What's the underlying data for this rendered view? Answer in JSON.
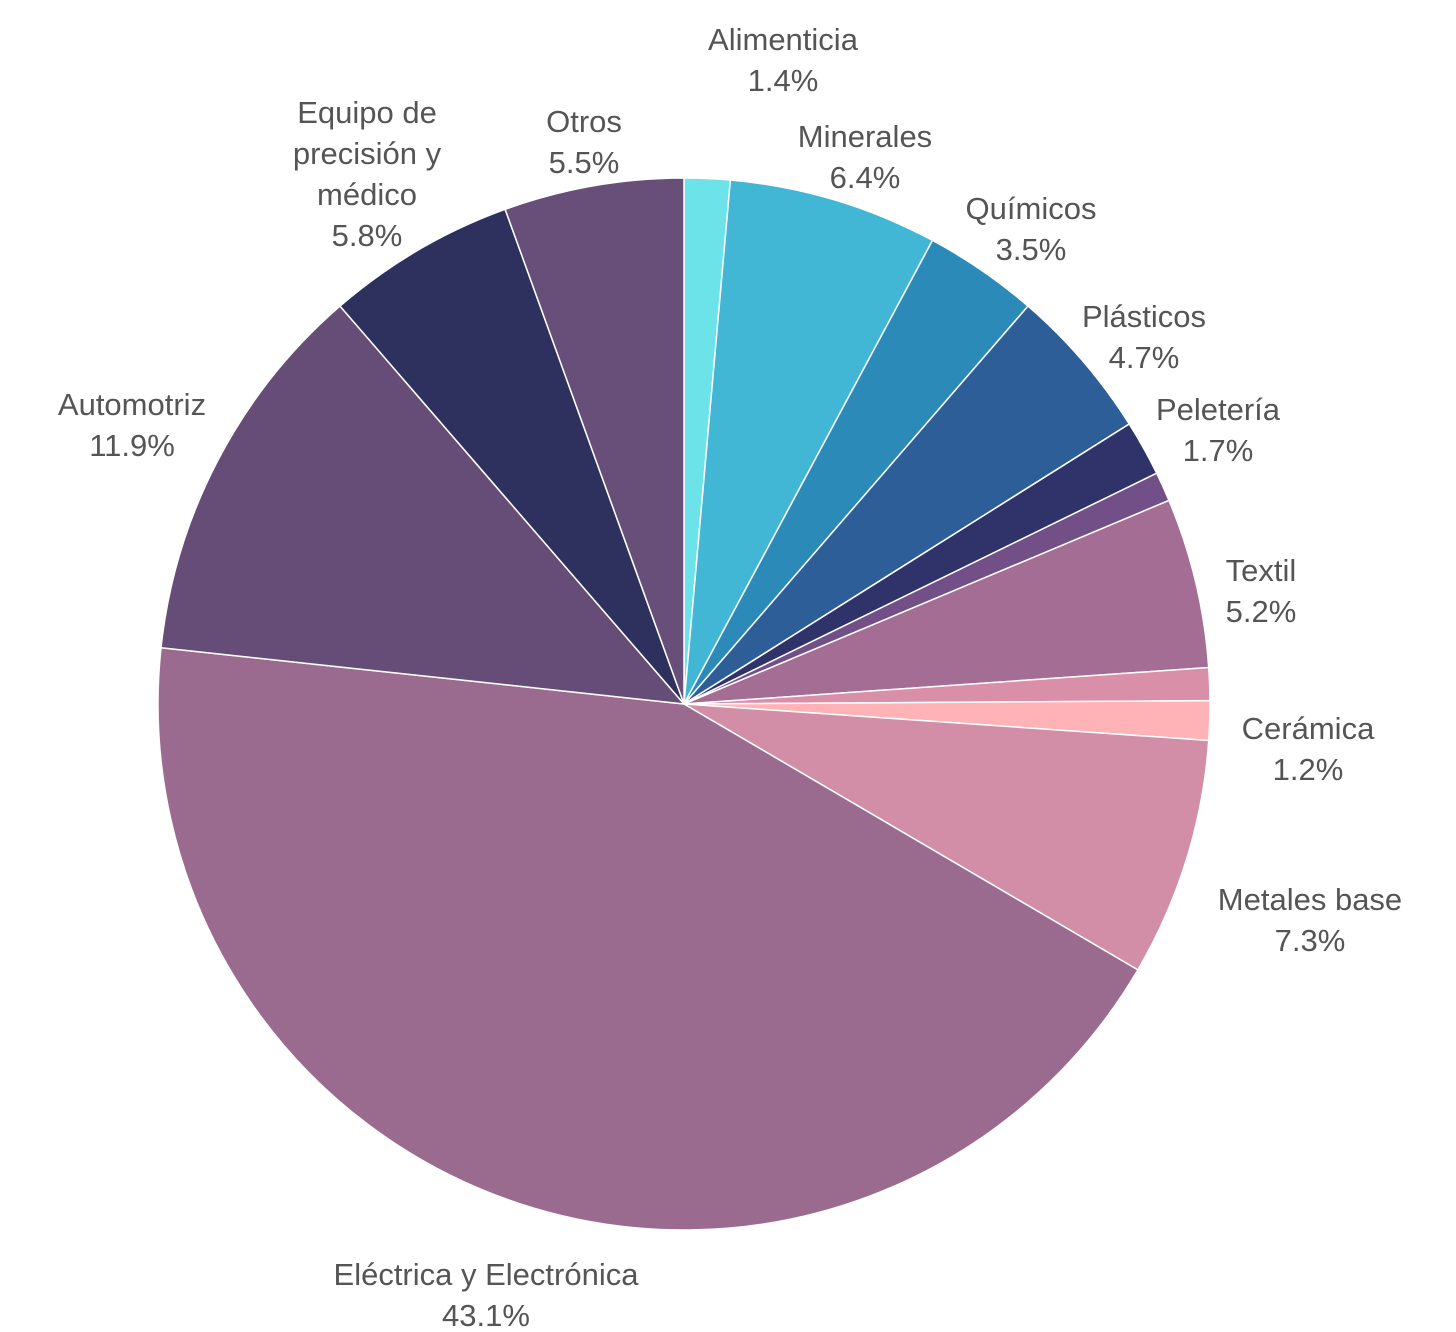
{
  "chart_data": {
    "type": "pie",
    "title": "",
    "start": "top (12 o'clock)",
    "direction": "clockwise",
    "legend": "none (labels next to slices)",
    "slices": [
      {
        "name": "Alimenticia",
        "label_lines": [
          "Alimenticia"
        ],
        "percent_label": "1.4%",
        "value": 1.4,
        "color": "#6be3e8"
      },
      {
        "name": "Minerales",
        "label_lines": [
          "Minerales"
        ],
        "percent_label": "6.4%",
        "value": 6.4,
        "color": "#42b6d5"
      },
      {
        "name": "Químicos",
        "label_lines": [
          "Químicos"
        ],
        "percent_label": "3.5%",
        "value": 3.5,
        "color": "#2c8ab8"
      },
      {
        "name": "Plásticos",
        "label_lines": [
          "Plásticos"
        ],
        "percent_label": "4.7%",
        "value": 4.7,
        "color": "#2e5e97"
      },
      {
        "name": "Peletería",
        "label_lines": [
          "Peletería"
        ],
        "percent_label": "1.7%",
        "value": 1.7,
        "color": "#2f336a"
      },
      {
        "name": "",
        "label_lines": [],
        "percent_label": "",
        "value": 0.9,
        "color": "#734f87"
      },
      {
        "name": "Textil",
        "label_lines": [
          "Textil"
        ],
        "percent_label": "5.2%",
        "value": 5.2,
        "color": "#a46d93"
      },
      {
        "name": "",
        "label_lines": [],
        "percent_label": "",
        "value": 1.0,
        "color": "#d98fa8"
      },
      {
        "name": "Cerámica",
        "label_lines": [
          "Cerámica"
        ],
        "percent_label": "1.2%",
        "value": 1.2,
        "color": "#ffb3b7"
      },
      {
        "name": "Metales base",
        "label_lines": [
          "Metales base"
        ],
        "percent_label": "7.3%",
        "value": 7.3,
        "color": "#d38ea7"
      },
      {
        "name": "Eléctrica y Electrónica",
        "label_lines": [
          "Eléctrica y Electrónica"
        ],
        "percent_label": "43.1%",
        "value": 43.1,
        "color": "#9b6b8f"
      },
      {
        "name": "Automotriz",
        "label_lines": [
          "Automotriz"
        ],
        "percent_label": "11.9%",
        "value": 11.9,
        "color": "#654d78"
      },
      {
        "name": "Equipo de precisión y médico",
        "label_lines": [
          "Equipo de",
          "precisión y",
          "médico"
        ],
        "percent_label": "5.8%",
        "value": 5.8,
        "color": "#2e315d"
      },
      {
        "name": "Otros",
        "label_lines": [
          "Otros"
        ],
        "percent_label": "5.5%",
        "value": 5.5,
        "color": "#674f79"
      }
    ]
  }
}
